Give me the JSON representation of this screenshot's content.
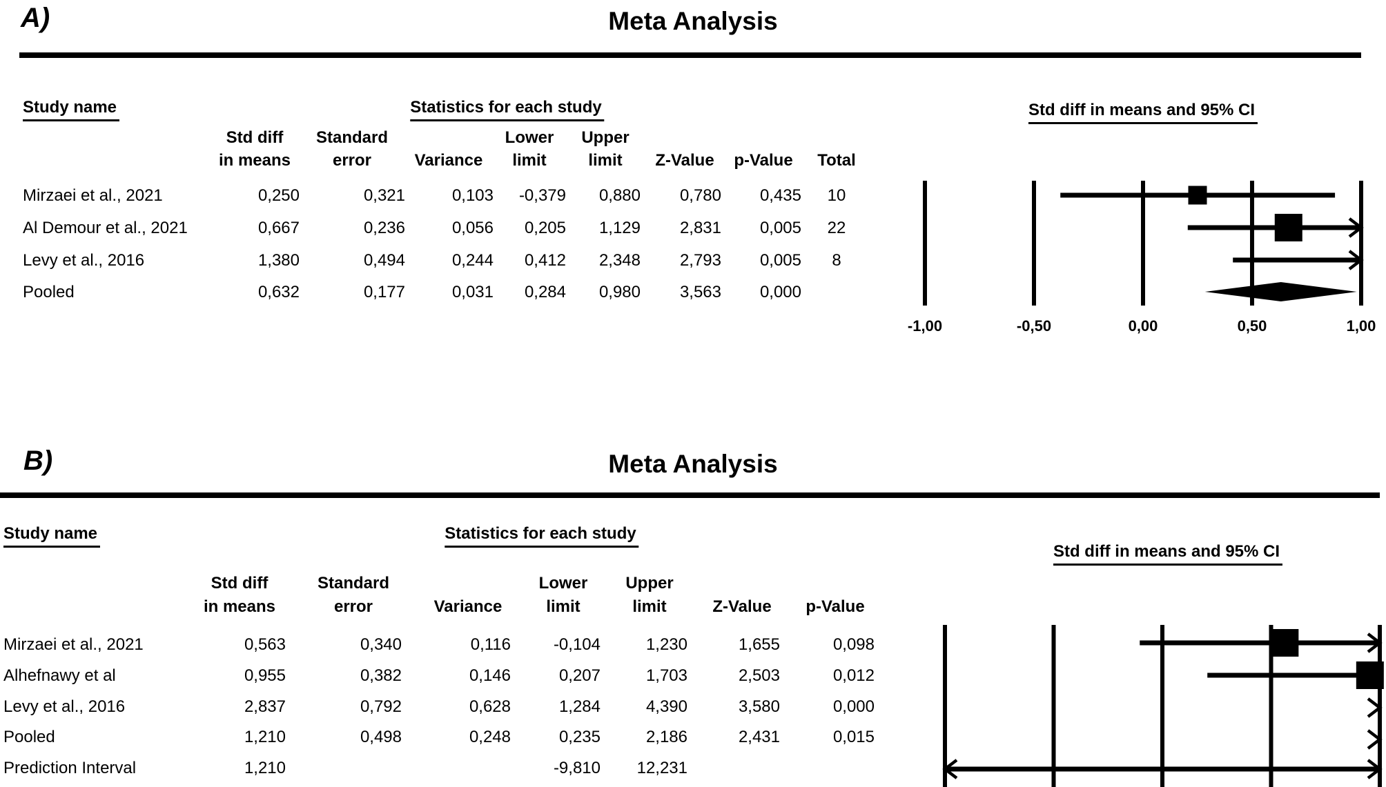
{
  "colors": {
    "foreground": "#000000",
    "background": "#ffffff"
  },
  "panels": [
    {
      "label": "A)",
      "title": "Meta Analysis",
      "study_header": "Study name",
      "stats_header": "Statistics for each study",
      "ci_header": "Std diff in means and 95% CI",
      "columns": {
        "std_diff": [
          "Std diff",
          "in means"
        ],
        "std_err": [
          "Standard",
          "error"
        ],
        "variance": [
          "",
          "Variance"
        ],
        "lower": [
          "Lower",
          "limit"
        ],
        "upper": [
          "Upper",
          "limit"
        ],
        "z": [
          "",
          "Z-Value"
        ],
        "p": [
          "",
          "p-Value"
        ],
        "total": [
          "",
          "Total"
        ]
      },
      "rows": [
        {
          "study": "Mirzaei et al., 2021",
          "std_diff": "0,250",
          "std_err": "0,321",
          "variance": "0,103",
          "lower": "-0,379",
          "upper": "0,880",
          "z": "0,780",
          "p": "0,435",
          "total": "10"
        },
        {
          "study": "Al Demour et al., 2021",
          "std_diff": "0,667",
          "std_err": "0,236",
          "variance": "0,056",
          "lower": "0,205",
          "upper": "1,129",
          "z": "2,831",
          "p": "0,005",
          "total": "22"
        },
        {
          "study": "Levy et al., 2016",
          "std_diff": "1,380",
          "std_err": "0,494",
          "variance": "0,244",
          "lower": "0,412",
          "upper": "2,348",
          "z": "2,793",
          "p": "0,005",
          "total": "8"
        },
        {
          "study": "Pooled",
          "std_diff": "0,632",
          "std_err": "0,177",
          "variance": "0,031",
          "lower": "0,284",
          "upper": "0,980",
          "z": "3,563",
          "p": "0,000",
          "total": ""
        }
      ],
      "axis_ticks": [
        "-1,00",
        "-0,50",
        "0,00",
        "0,50",
        "1,00"
      ]
    },
    {
      "label": "B)",
      "title": "Meta Analysis",
      "study_header": "Study name",
      "stats_header": "Statistics for each study",
      "ci_header": "Std diff in means and 95% CI",
      "columns": {
        "std_diff": [
          "Std diff",
          "in means"
        ],
        "std_err": [
          "Standard",
          "error"
        ],
        "variance": [
          "",
          "Variance"
        ],
        "lower": [
          "Lower",
          "limit"
        ],
        "upper": [
          "Upper",
          "limit"
        ],
        "z": [
          "",
          "Z-Value"
        ],
        "p": [
          "",
          "p-Value"
        ]
      },
      "rows": [
        {
          "study": "Mirzaei et al., 2021",
          "std_diff": "0,563",
          "std_err": "0,340",
          "variance": "0,116",
          "lower": "-0,104",
          "upper": "1,230",
          "z": "1,655",
          "p": "0,098"
        },
        {
          "study": "Alhefnawy et al",
          "std_diff": "0,955",
          "std_err": "0,382",
          "variance": "0,146",
          "lower": "0,207",
          "upper": "1,703",
          "z": "2,503",
          "p": "0,012"
        },
        {
          "study": "Levy et al., 2016",
          "std_diff": "2,837",
          "std_err": "0,792",
          "variance": "0,628",
          "lower": "1,284",
          "upper": "4,390",
          "z": "3,580",
          "p": "0,000"
        },
        {
          "study": "Pooled",
          "std_diff": "1,210",
          "std_err": "0,498",
          "variance": "0,248",
          "lower": "0,235",
          "upper": "2,186",
          "z": "2,431",
          "p": "0,015"
        },
        {
          "study": "Prediction Interval",
          "std_diff": "1,210",
          "std_err": "",
          "variance": "",
          "lower": "-9,810",
          "upper": "12,231",
          "z": "",
          "p": ""
        }
      ],
      "axis_ticks": []
    }
  ],
  "chart_data": [
    {
      "type": "scatter",
      "subtype": "forest_plot",
      "panel": "A",
      "title": "Meta Analysis",
      "effect_measure": "Std diff in means and 95% CI",
      "xlim": [
        -1,
        1
      ],
      "tick_values": [
        -1.0,
        -0.5,
        0.0,
        0.5,
        1.0
      ],
      "tick_labels": [
        "-1,00",
        "-0,50",
        "0,00",
        "0,50",
        "1,00"
      ],
      "studies": [
        {
          "name": "Mirzaei et al., 2021",
          "effect": 0.25,
          "lower": -0.379,
          "upper": 0.88,
          "z": 0.78,
          "p": 0.435,
          "total": 10,
          "display": "ci_square",
          "marker_size": 27
        },
        {
          "name": "Al Demour et al., 2021",
          "effect": 0.667,
          "lower": 0.205,
          "upper": 1.129,
          "z": 2.831,
          "p": 0.005,
          "total": 22,
          "display": "ci_square",
          "marker_size": 40
        },
        {
          "name": "Levy et al., 2016",
          "effect": 1.38,
          "lower": 0.412,
          "upper": 2.348,
          "z": 2.793,
          "p": 0.005,
          "total": 8,
          "display": "ci_square",
          "marker_size": 0
        },
        {
          "name": "Pooled",
          "effect": 0.632,
          "lower": 0.284,
          "upper": 0.98,
          "z": 3.563,
          "p": 0.0,
          "display": "diamond"
        }
      ]
    },
    {
      "type": "scatter",
      "subtype": "forest_plot",
      "panel": "B",
      "title": "Meta Analysis",
      "effect_measure": "Std diff in means and 95% CI",
      "xlim": [
        -1,
        1
      ],
      "tick_values": [
        -1.0,
        -0.5,
        0.0,
        0.5,
        1.0
      ],
      "tick_labels": [],
      "studies": [
        {
          "name": "Mirzaei et al., 2021",
          "effect": 0.563,
          "lower": -0.104,
          "upper": 1.23,
          "z": 1.655,
          "p": 0.098,
          "display": "ci_square",
          "marker_size": 40
        },
        {
          "name": "Alhefnawy et al",
          "effect": 0.955,
          "lower": 0.207,
          "upper": 1.703,
          "z": 2.503,
          "p": 0.012,
          "display": "ci_square",
          "marker_size": 40
        },
        {
          "name": "Levy et al., 2016",
          "effect": 2.837,
          "lower": 1.284,
          "upper": 4.39,
          "z": 3.58,
          "p": 0.0,
          "display": "arrow_right_only"
        },
        {
          "name": "Pooled",
          "effect": 1.21,
          "lower": 0.235,
          "upper": 2.186,
          "z": 2.431,
          "p": 0.015,
          "display": "arrow_right_only"
        },
        {
          "name": "Prediction Interval",
          "effect": 1.21,
          "lower": -9.81,
          "upper": 12.231,
          "display": "ci_square",
          "marker_size": 0
        }
      ]
    }
  ]
}
